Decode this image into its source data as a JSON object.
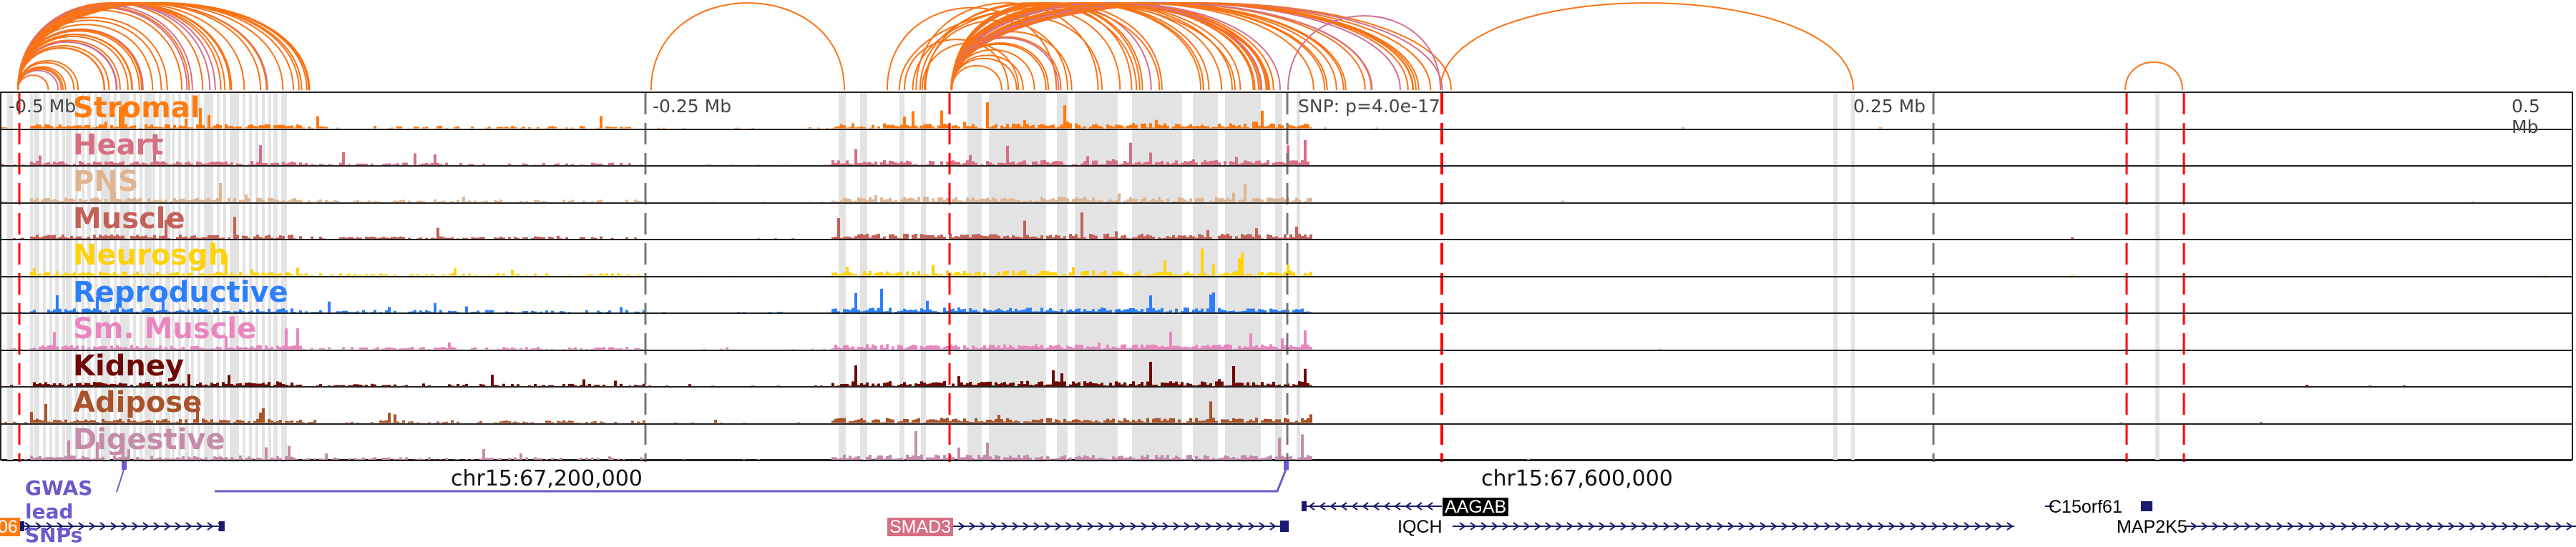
{
  "tracks": [
    {
      "label": "Stromal",
      "color": "#ff7a0f"
    },
    {
      "label": "Heart",
      "color": "#d66f82"
    },
    {
      "label": "PNS",
      "color": "#dfb591"
    },
    {
      "label": "Muscle",
      "color": "#c26159"
    },
    {
      "label": "Neurosgh",
      "color": "#ffd20a"
    },
    {
      "label": "Reproductive",
      "color": "#2d7ff9"
    },
    {
      "label": "Sm. Muscle",
      "color": "#ea86bf"
    },
    {
      "label": "Kidney",
      "color": "#6e0a06"
    },
    {
      "label": "Adipose",
      "color": "#a9532a"
    },
    {
      "label": "Digestive",
      "color": "#c48ca9"
    }
  ],
  "axis": {
    "minus_half": "-0.5 Mb",
    "minus_quarter": "-0.25 Mb",
    "snp": "SNP: p=4.0e-17",
    "plus_quarter": "0.25 Mb",
    "plus_half": "0.5 Mb"
  },
  "gwas": {
    "label": "GWAS lead SNPs",
    "color": "#6a5acd"
  },
  "coords": {
    "left": "chr15:67,200,000",
    "right": "chr15:67,600,000"
  },
  "genes": {
    "g06": "06",
    "smad3": "SMAD3",
    "aagab": "AAGAB",
    "iqch": "IQCH",
    "c15orf61": "C15orf61",
    "map2k5": "MAP2K5"
  }
}
